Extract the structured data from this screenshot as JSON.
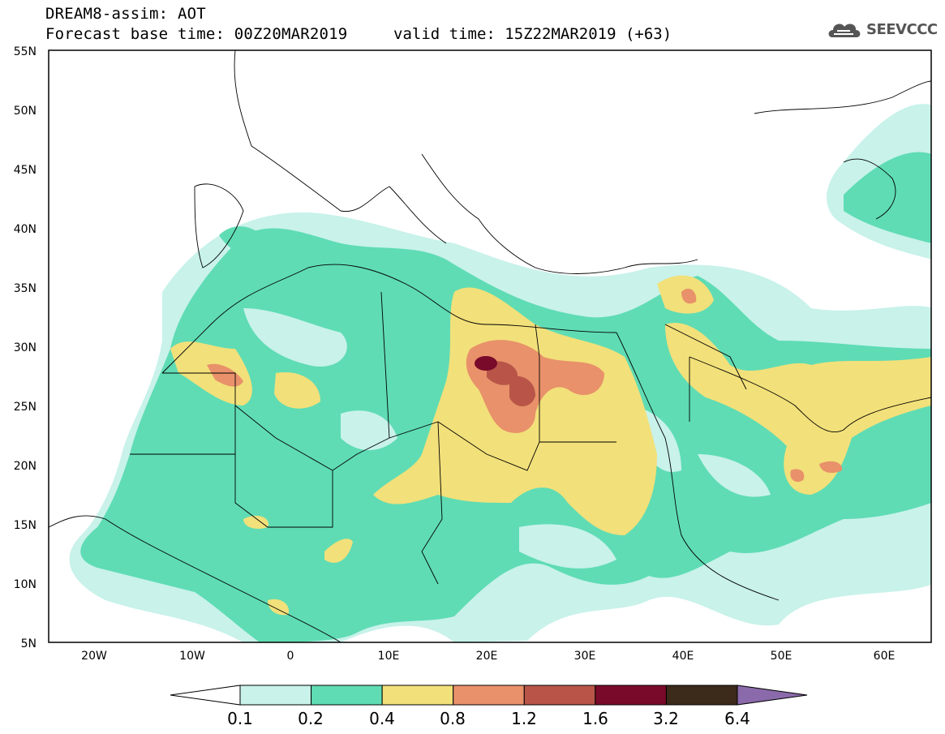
{
  "header": {
    "model_line": "DREAM8-assim: AOT",
    "base_time": "Forecast base time: 00Z20MAR2019",
    "valid_time": "valid time: 15Z22MAR2019 (+63)",
    "logo_text": "SEEVCCC"
  },
  "axes": {
    "lat_labels": [
      "55N",
      "50N",
      "45N",
      "40N",
      "35N",
      "30N",
      "25N",
      "20N",
      "15N",
      "10N",
      "5N"
    ],
    "lon_labels": [
      "20W",
      "10W",
      "0",
      "10E",
      "20E",
      "30E",
      "40E",
      "50E",
      "60E"
    ]
  },
  "colorbar": {
    "labels": [
      "0.1",
      "0.2",
      "0.4",
      "0.8",
      "1.2",
      "1.6",
      "3.2",
      "6.4"
    ],
    "colors": [
      "#c8f2ea",
      "#5fdcb4",
      "#f2e07a",
      "#e8916a",
      "#b85548",
      "#7a0a2a",
      "#3c2a1a",
      "#8a6aaa"
    ]
  }
}
